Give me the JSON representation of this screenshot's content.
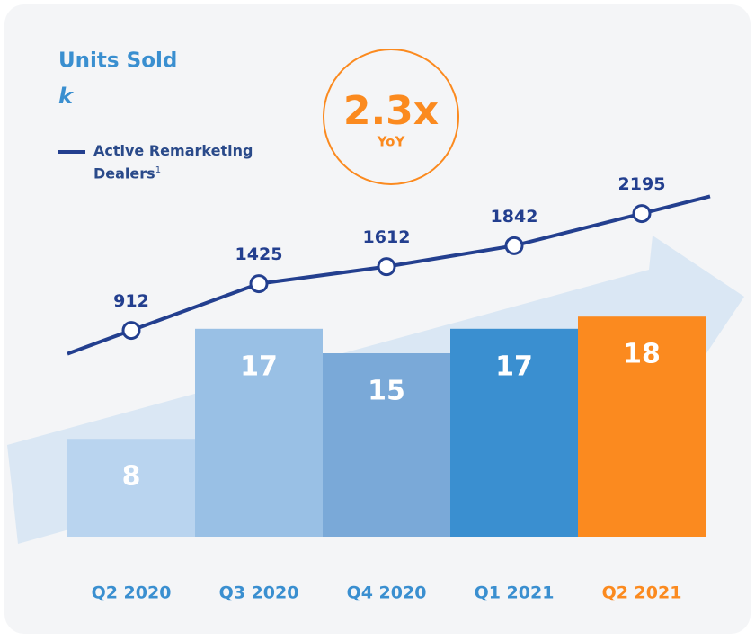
{
  "chart_data": {
    "type": "bar",
    "title": "Units Sold",
    "subtitle": "k",
    "categories": [
      "Q2 2020",
      "Q3 2020",
      "Q4 2020",
      "Q1 2021",
      "Q2 2021"
    ],
    "category_label_colors": [
      "#3a8fd0",
      "#3a8fd0",
      "#3a8fd0",
      "#3a8fd0",
      "#fb8a1f"
    ],
    "series": [
      {
        "type": "bar",
        "colors": [
          "#b9d4ef",
          "#99c0e5",
          "#7aa9d8",
          "#3a8fd0",
          "#fb8a1f"
        ],
        "values": [
          8,
          17,
          15,
          17,
          18
        ]
      },
      {
        "type": "line",
        "name": "Active Remarketing Dealers",
        "footnote": "1",
        "color": "#233f8f",
        "axis": "y2",
        "values": [
          912,
          1425,
          1612,
          1842,
          2195
        ]
      }
    ],
    "ylim": [
      0,
      20
    ],
    "y2lim": [
      0,
      3000
    ],
    "badge": {
      "value": "2.3x",
      "label": "YoY",
      "color": "#fb8a1f"
    }
  }
}
